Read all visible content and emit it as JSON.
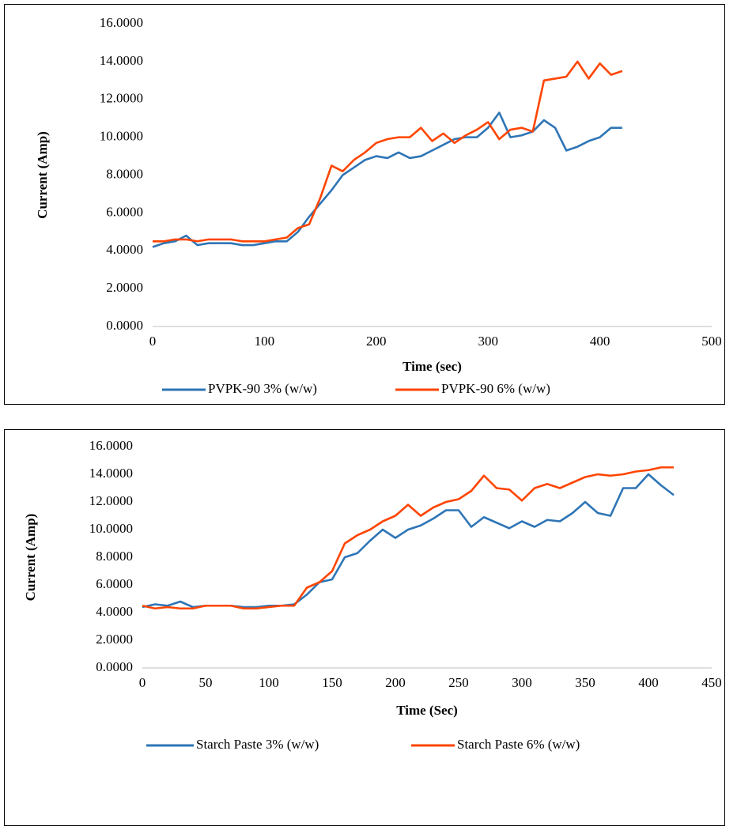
{
  "chart_data": [
    {
      "type": "line",
      "x_label": "Time (sec)",
      "y_label": "Current (Amp)",
      "x": [
        0,
        10,
        20,
        30,
        40,
        50,
        60,
        70,
        80,
        90,
        100,
        110,
        120,
        130,
        140,
        150,
        160,
        170,
        180,
        190,
        200,
        210,
        220,
        230,
        240,
        250,
        260,
        270,
        280,
        290,
        300,
        310,
        320,
        330,
        340,
        350,
        360,
        370,
        380,
        390,
        400,
        410,
        420
      ],
      "series": [
        {
          "name": "PVPK-90 3% (w/w)",
          "color": "#2e75b6",
          "values": [
            4.2,
            4.4,
            4.5,
            4.8,
            4.3,
            4.4,
            4.4,
            4.4,
            4.3,
            4.3,
            4.4,
            4.5,
            4.5,
            5.0,
            5.8,
            6.5,
            7.2,
            8.0,
            8.4,
            8.8,
            9.0,
            8.9,
            9.2,
            8.9,
            9.0,
            9.3,
            9.6,
            9.9,
            10.0,
            10.0,
            10.5,
            11.3,
            10.0,
            10.1,
            10.3,
            10.9,
            10.5,
            9.3,
            9.5,
            9.8,
            10.0,
            10.5,
            10.5
          ]
        },
        {
          "name": "PVPK-90 6% (w/w)",
          "color": "#ff4500",
          "values": [
            4.5,
            4.5,
            4.6,
            4.6,
            4.5,
            4.6,
            4.6,
            4.6,
            4.5,
            4.5,
            4.5,
            4.6,
            4.7,
            5.2,
            5.4,
            6.8,
            8.5,
            8.2,
            8.8,
            9.2,
            9.7,
            9.9,
            10.0,
            10.0,
            10.5,
            9.8,
            10.2,
            9.7,
            10.1,
            10.4,
            10.8,
            9.9,
            10.4,
            10.5,
            10.3,
            13.0,
            13.1,
            13.2,
            14.0,
            13.1,
            13.9,
            13.3,
            13.5
          ]
        }
      ],
      "xlim": [
        0,
        500
      ],
      "xticks": [
        0,
        100,
        200,
        300,
        400,
        500
      ],
      "ylim": [
        0,
        16
      ],
      "yticks": [
        {
          "value": 0,
          "label": "0.0000"
        },
        {
          "value": 2,
          "label": "2.0000"
        },
        {
          "value": 4,
          "label": "4.0000"
        },
        {
          "value": 6,
          "label": "6.0000"
        },
        {
          "value": 8,
          "label": "8.0000"
        },
        {
          "value": 10,
          "label": "10.0000"
        },
        {
          "value": 12,
          "label": "12.0000"
        },
        {
          "value": 14,
          "label": "14.0000"
        },
        {
          "value": 16,
          "label": "16.0000"
        }
      ],
      "grid": false,
      "legend": "bottom"
    },
    {
      "type": "line",
      "x_label": "Time (Sec)",
      "y_label": "Current (Amp)",
      "x": [
        0,
        10,
        20,
        30,
        40,
        50,
        60,
        70,
        80,
        90,
        100,
        110,
        120,
        130,
        140,
        150,
        160,
        170,
        180,
        190,
        200,
        210,
        220,
        230,
        240,
        250,
        260,
        270,
        280,
        290,
        300,
        310,
        320,
        330,
        340,
        350,
        360,
        370,
        380,
        390,
        400,
        410,
        420
      ],
      "series": [
        {
          "name": "Starch Paste 3% (w/w)",
          "color": "#2e75b6",
          "values": [
            4.4,
            4.6,
            4.5,
            4.8,
            4.4,
            4.5,
            4.5,
            4.5,
            4.4,
            4.4,
            4.5,
            4.5,
            4.6,
            5.3,
            6.2,
            6.4,
            8.0,
            8.3,
            9.2,
            10.0,
            9.4,
            10.0,
            10.3,
            10.8,
            11.4,
            11.4,
            10.2,
            10.9,
            10.5,
            10.1,
            10.6,
            10.2,
            10.7,
            10.6,
            11.2,
            12.0,
            11.2,
            11.0,
            13.0,
            13.0,
            14.0,
            13.2,
            12.5
          ]
        },
        {
          "name": "Starch Paste 6% (w/w)",
          "color": "#ff4500",
          "values": [
            4.5,
            4.3,
            4.4,
            4.3,
            4.3,
            4.5,
            4.5,
            4.5,
            4.3,
            4.3,
            4.4,
            4.5,
            4.5,
            5.8,
            6.2,
            7.0,
            9.0,
            9.6,
            10.0,
            10.6,
            11.0,
            11.8,
            11.0,
            11.6,
            12.0,
            12.2,
            12.8,
            13.9,
            13.0,
            12.9,
            12.1,
            13.0,
            13.3,
            13.0,
            13.4,
            13.8,
            14.0,
            13.9,
            14.0,
            14.2,
            14.3,
            14.5,
            14.5
          ]
        }
      ],
      "xlim": [
        0,
        450
      ],
      "xticks": [
        0,
        50,
        100,
        150,
        200,
        250,
        300,
        350,
        400,
        450
      ],
      "ylim": [
        0,
        16
      ],
      "yticks": [
        {
          "value": 0,
          "label": "0.0000"
        },
        {
          "value": 2,
          "label": "2.0000"
        },
        {
          "value": 4,
          "label": "4.0000"
        },
        {
          "value": 6,
          "label": "6.0000"
        },
        {
          "value": 8,
          "label": "8.0000"
        },
        {
          "value": 10,
          "label": "10.0000"
        },
        {
          "value": 12,
          "label": "12.0000"
        },
        {
          "value": 14,
          "label": "14.0000"
        },
        {
          "value": 16,
          "label": "16.0000"
        }
      ],
      "grid": false,
      "legend": "bottom"
    }
  ]
}
